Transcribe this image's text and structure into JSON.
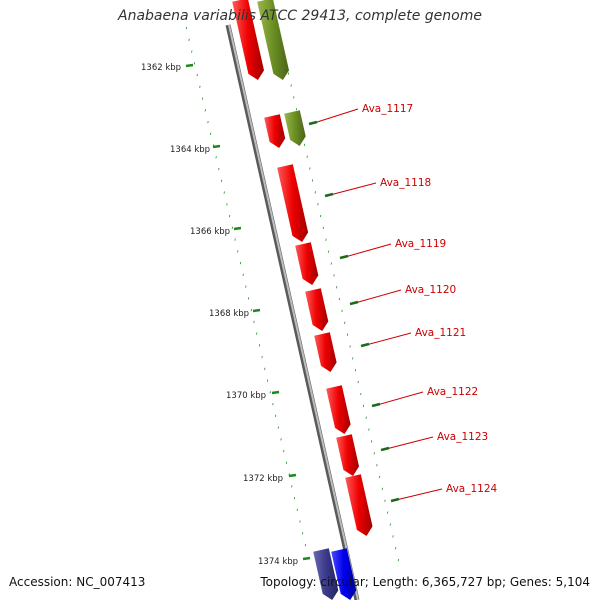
{
  "title": "Anabaena variabilis ATCC 29413, complete genome",
  "footer": {
    "accession": "Accession: NC_007413",
    "summary": "Topology: circular; Length: 6,365,727 bp; Genes: 5,104"
  },
  "scale": {
    "ticks": [
      "1362 kbp",
      "1364 kbp",
      "1366 kbp",
      "1368 kbp",
      "1370 kbp",
      "1372 kbp",
      "1374 kbp"
    ]
  },
  "genes": [
    {
      "label": "Ava_1117"
    },
    {
      "label": "Ava_1118"
    },
    {
      "label": "Ava_1119"
    },
    {
      "label": "Ava_1120"
    },
    {
      "label": "Ava_1121"
    },
    {
      "label": "Ava_1122"
    },
    {
      "label": "Ava_1123"
    },
    {
      "label": "Ava_1124"
    }
  ],
  "colors": {
    "label": "#cc0000",
    "cds_red": "#ee0000",
    "cds_olive": "#6b8e23",
    "cds_navy": "#3a3a8c",
    "cds_blue": "#0000ee",
    "backbone": "#808080",
    "gc_track": "#1a8a1a",
    "tick_text": "#222222"
  }
}
